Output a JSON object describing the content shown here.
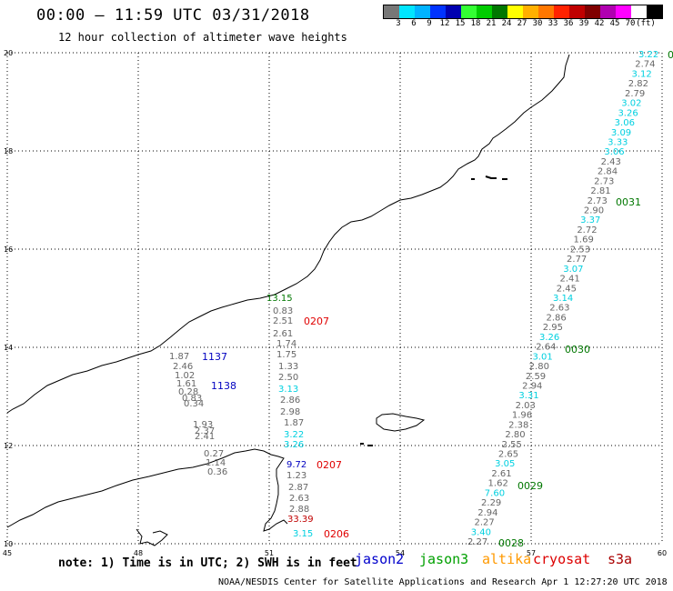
{
  "title": "00:00 – 11:59 UTC 03/31/2018",
  "subtitle": "12 hour collection of altimeter wave heights",
  "legend": {
    "colors": [
      "#777777",
      "#00e5ff",
      "#00b3ff",
      "#0033ff",
      "#0000b0",
      "#33ff33",
      "#00cc00",
      "#007700",
      "#ffff00",
      "#ffb000",
      "#ff7700",
      "#ff2200",
      "#c00000",
      "#800000",
      "#b000b0",
      "#ff00ff",
      "#ffffff",
      "#000000"
    ],
    "ticks": [
      "3",
      "6",
      "9",
      "12",
      "15",
      "18",
      "21",
      "24",
      "27",
      "30",
      "33",
      "36",
      "39",
      "42",
      "45",
      "70",
      "(ft)"
    ]
  },
  "axes": {
    "lon": [
      "45",
      "48",
      "51",
      "54",
      "57",
      "60"
    ],
    "lat": [
      "20",
      "18",
      "16",
      "14",
      "12",
      "10"
    ]
  },
  "tracks": [
    {
      "id": "t_east",
      "times": [
        {
          "label": "0031",
          "color": "#007700"
        },
        {
          "label": "0030",
          "color": "#007700"
        },
        {
          "label": "0029",
          "color": "#007700"
        },
        {
          "label": "0028",
          "color": "#007700"
        }
      ],
      "values": [
        {
          "v": "3.22",
          "c": "#00d0e0"
        },
        {
          "v": "2.74",
          "c": "#666"
        },
        {
          "v": "3.12",
          "c": "#00d0e0"
        },
        {
          "v": "2.82",
          "c": "#666"
        },
        {
          "v": "2.79",
          "c": "#666"
        },
        {
          "v": "3.02",
          "c": "#00d0e0"
        },
        {
          "v": "3.26",
          "c": "#00d0e0"
        },
        {
          "v": "3.06",
          "c": "#00d0e0"
        },
        {
          "v": "3.09",
          "c": "#00d0e0"
        },
        {
          "v": "3.33",
          "c": "#00d0e0"
        },
        {
          "v": "3.06",
          "c": "#00d0e0"
        },
        {
          "v": "2.43",
          "c": "#666"
        },
        {
          "v": "2.84",
          "c": "#666"
        },
        {
          "v": "2.73",
          "c": "#666"
        },
        {
          "v": "2.81",
          "c": "#666"
        },
        {
          "v": "2.73",
          "c": "#666"
        },
        {
          "v": "2.90",
          "c": "#666"
        },
        {
          "v": "3.37",
          "c": "#00d0e0"
        },
        {
          "v": "2.72",
          "c": "#666"
        },
        {
          "v": "1.69",
          "c": "#666"
        },
        {
          "v": "2.53",
          "c": "#666"
        },
        {
          "v": "2.77",
          "c": "#666"
        },
        {
          "v": "3.07",
          "c": "#00d0e0"
        },
        {
          "v": "2.41",
          "c": "#666"
        },
        {
          "v": "2.45",
          "c": "#666"
        },
        {
          "v": "3.14",
          "c": "#00d0e0"
        },
        {
          "v": "2.63",
          "c": "#666"
        },
        {
          "v": "2.86",
          "c": "#666"
        },
        {
          "v": "2.95",
          "c": "#666"
        },
        {
          "v": "3.26",
          "c": "#00d0e0"
        },
        {
          "v": "2.64",
          "c": "#666"
        },
        {
          "v": "3.01",
          "c": "#00d0e0"
        },
        {
          "v": "2.80",
          "c": "#666"
        },
        {
          "v": "2.59",
          "c": "#666"
        },
        {
          "v": "2.94",
          "c": "#666"
        },
        {
          "v": "3.31",
          "c": "#00d0e0"
        },
        {
          "v": "2.03",
          "c": "#666"
        },
        {
          "v": "1.96",
          "c": "#666"
        },
        {
          "v": "2.38",
          "c": "#666"
        },
        {
          "v": "2.80",
          "c": "#666"
        },
        {
          "v": "2.55",
          "c": "#666"
        },
        {
          "v": "2.65",
          "c": "#666"
        },
        {
          "v": "3.05",
          "c": "#00d0e0"
        },
        {
          "v": "2.61",
          "c": "#666"
        },
        {
          "v": "1.62",
          "c": "#666"
        },
        {
          "v": "7.60",
          "c": "#00d0e0"
        },
        {
          "v": "2.29",
          "c": "#666"
        },
        {
          "v": "2.94",
          "c": "#666"
        },
        {
          "v": "2.27",
          "c": "#666"
        },
        {
          "v": "3.40",
          "c": "#00d0e0"
        },
        {
          "v": "2.27",
          "c": "#666"
        }
      ]
    },
    {
      "id": "t_mid",
      "times": [
        {
          "label": "0207",
          "color": "#e00000"
        },
        {
          "label": "0207",
          "color": "#e00000"
        },
        {
          "label": "0206",
          "color": "#e00000"
        }
      ],
      "values": [
        {
          "v": "13.15",
          "c": "#007700"
        },
        {
          "v": "0.83",
          "c": "#666"
        },
        {
          "v": "2.51",
          "c": "#666"
        },
        {
          "v": "2.61",
          "c": "#666"
        },
        {
          "v": "1.74",
          "c": "#666"
        },
        {
          "v": "1.75",
          "c": "#666"
        },
        {
          "v": "1.33",
          "c": "#666"
        },
        {
          "v": "2.50",
          "c": "#666"
        },
        {
          "v": "3.13",
          "c": "#00d0e0"
        },
        {
          "v": "2.86",
          "c": "#666"
        },
        {
          "v": "2.98",
          "c": "#666"
        },
        {
          "v": "1.87",
          "c": "#666"
        },
        {
          "v": "3.22",
          "c": "#00d0e0"
        },
        {
          "v": "3.26",
          "c": "#00d0e0"
        },
        {
          "v": "9.72",
          "c": "#0000c0"
        },
        {
          "v": "1.23",
          "c": "#666"
        },
        {
          "v": "2.87",
          "c": "#666"
        },
        {
          "v": "2.63",
          "c": "#666"
        },
        {
          "v": "2.88",
          "c": "#666"
        },
        {
          "v": "33.39",
          "c": "#c00000"
        },
        {
          "v": "3.15",
          "c": "#00d0e0"
        }
      ]
    },
    {
      "id": "t_west",
      "times": [
        {
          "label": "1137",
          "color": "#0000c0"
        },
        {
          "label": "1138",
          "color": "#0000c0"
        }
      ],
      "values": [
        {
          "v": "1.87",
          "c": "#666"
        },
        {
          "v": "2.46",
          "c": "#666"
        },
        {
          "v": "1.02",
          "c": "#666"
        },
        {
          "v": "1.61",
          "c": "#666"
        },
        {
          "v": "0.28",
          "c": "#666"
        },
        {
          "v": "0.83",
          "c": "#666"
        },
        {
          "v": "0.34",
          "c": "#666"
        },
        {
          "v": "1.93",
          "c": "#666"
        },
        {
          "v": "2.37",
          "c": "#666"
        },
        {
          "v": "2.41",
          "c": "#666"
        },
        {
          "v": "0.27",
          "c": "#666"
        },
        {
          "v": "1.14",
          "c": "#666"
        },
        {
          "v": "0.36",
          "c": "#666"
        }
      ]
    }
  ],
  "note": "note: 1) Time is in UTC; 2) SWH is in feet",
  "satellites": [
    {
      "name": "jason2",
      "color": "#0000cc"
    },
    {
      "name": "jason3",
      "color": "#00a000"
    },
    {
      "name": "altika",
      "color": "#ff9900"
    },
    {
      "name": "cryosat",
      "color": "#dd0000"
    },
    {
      "name": "s3a",
      "color": "#aa0000"
    }
  ],
  "credit": "NOAA/NESDIS Center for Satellite Applications and Research   Apr  1 12:27:20 UTC 2018",
  "edge_label": "0"
}
